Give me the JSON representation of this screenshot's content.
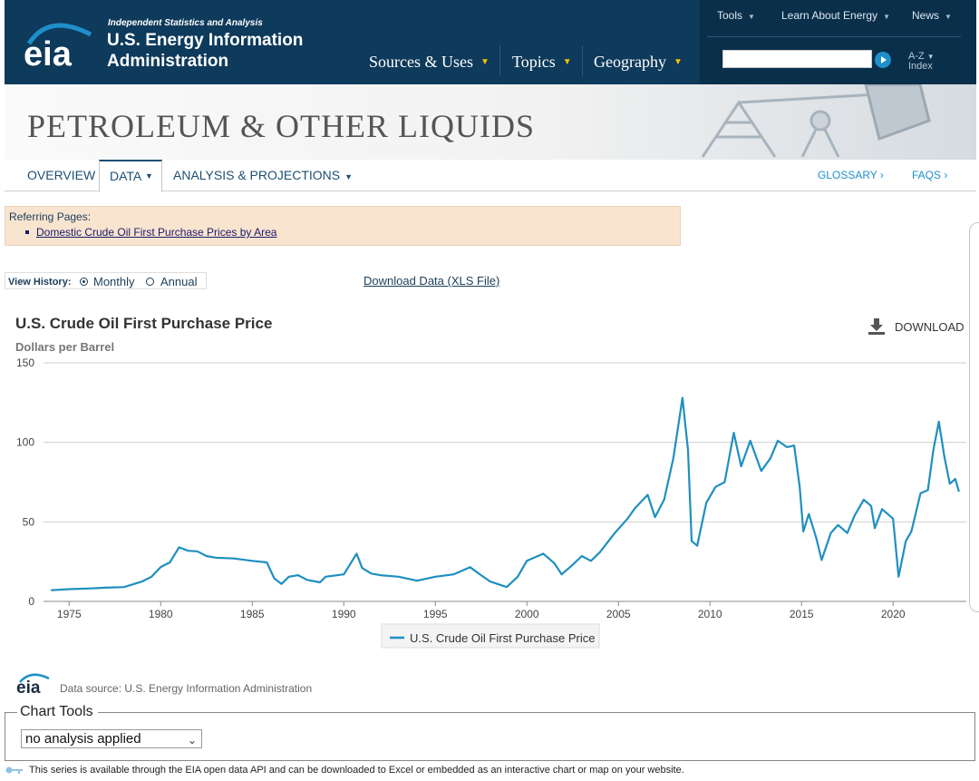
{
  "header": {
    "tagline": "Independent Statistics and Analysis",
    "name_line1": "U.S. Energy Information",
    "name_line2": "Administration",
    "logo_text": "eia",
    "main_nav": [
      "Sources & Uses",
      "Topics",
      "Geography"
    ],
    "utility_nav": [
      "Tools",
      "Learn About Energy",
      "News"
    ],
    "search": {
      "value": "",
      "placeholder": ""
    },
    "az_index": {
      "line1": "A-Z",
      "line2": "Index"
    },
    "colors": {
      "bar": "#0e3a5b",
      "accent": "#f2c200",
      "search_button": "#1e8fc9"
    }
  },
  "banner": {
    "title": "PETROLEUM & OTHER LIQUIDS"
  },
  "subnav": {
    "items": [
      "OVERVIEW",
      "DATA",
      "ANALYSIS & PROJECTIONS"
    ],
    "active": "DATA",
    "right_items": [
      "GLOSSARY ›",
      "FAQS ›"
    ]
  },
  "referring": {
    "heading": "Referring Pages:",
    "links": [
      "Domestic Crude Oil First Purchase Prices by Area"
    ]
  },
  "view_history": {
    "label": "View History:",
    "options": [
      "Monthly",
      "Annual"
    ],
    "selected": "Monthly"
  },
  "download_data_link": "Download Data (XLS File)",
  "chart_header": {
    "title": "U.S. Crude Oil First Purchase Price",
    "units": "Dollars per Barrel",
    "download_label": "DOWNLOAD",
    "download_icon": "download-icon"
  },
  "chart_data": {
    "type": "line",
    "title": "U.S. Crude Oil First Purchase Price",
    "ylabel": "Dollars per Barrel",
    "xlabel": "",
    "ylim": [
      0,
      150
    ],
    "xlim": [
      1974.0,
      2023.6
    ],
    "yticks": [
      0,
      50,
      100,
      150
    ],
    "xticks": [
      1975,
      1980,
      1985,
      1990,
      1995,
      2000,
      2005,
      2010,
      2015,
      2020
    ],
    "grid": true,
    "legend_position": "bottom-center",
    "series": [
      {
        "name": "U.S. Crude Oil First Purchase Price",
        "color": "#1f8fc0",
        "points": [
          [
            1974.0,
            7.0
          ],
          [
            1975.0,
            7.7
          ],
          [
            1976.0,
            8.1
          ],
          [
            1977.0,
            8.6
          ],
          [
            1978.0,
            9.0
          ],
          [
            1979.0,
            12.6
          ],
          [
            1979.5,
            15.5
          ],
          [
            1980.0,
            21.6
          ],
          [
            1980.5,
            24.5
          ],
          [
            1981.0,
            34.0
          ],
          [
            1981.5,
            31.8
          ],
          [
            1982.0,
            31.5
          ],
          [
            1982.5,
            28.5
          ],
          [
            1983.0,
            27.5
          ],
          [
            1984.0,
            27.0
          ],
          [
            1985.0,
            25.5
          ],
          [
            1985.8,
            24.5
          ],
          [
            1986.2,
            14.5
          ],
          [
            1986.6,
            11.0
          ],
          [
            1987.0,
            15.5
          ],
          [
            1987.5,
            16.5
          ],
          [
            1988.0,
            13.5
          ],
          [
            1988.7,
            12.0
          ],
          [
            1989.0,
            15.5
          ],
          [
            1990.0,
            17.0
          ],
          [
            1990.7,
            30.0
          ],
          [
            1991.0,
            21.0
          ],
          [
            1991.5,
            17.5
          ],
          [
            1992.0,
            16.5
          ],
          [
            1993.0,
            15.5
          ],
          [
            1994.0,
            13.0
          ],
          [
            1995.0,
            15.5
          ],
          [
            1996.0,
            17.0
          ],
          [
            1996.9,
            21.5
          ],
          [
            1997.5,
            16.5
          ],
          [
            1998.0,
            12.5
          ],
          [
            1998.9,
            9.0
          ],
          [
            1999.5,
            15.5
          ],
          [
            2000.0,
            25.5
          ],
          [
            2000.9,
            30.0
          ],
          [
            2001.5,
            24.0
          ],
          [
            2001.9,
            17.0
          ],
          [
            2002.5,
            23.0
          ],
          [
            2003.0,
            28.5
          ],
          [
            2003.5,
            25.5
          ],
          [
            2004.0,
            31.0
          ],
          [
            2004.8,
            43.0
          ],
          [
            2005.5,
            52.0
          ],
          [
            2005.9,
            58.5
          ],
          [
            2006.6,
            67.0
          ],
          [
            2007.0,
            53.0
          ],
          [
            2007.5,
            64.0
          ],
          [
            2008.0,
            90.0
          ],
          [
            2008.5,
            128.0
          ],
          [
            2008.8,
            95.0
          ],
          [
            2009.0,
            38.0
          ],
          [
            2009.3,
            35.0
          ],
          [
            2009.8,
            62.0
          ],
          [
            2010.3,
            72.0
          ],
          [
            2010.8,
            75.0
          ],
          [
            2011.3,
            106.0
          ],
          [
            2011.7,
            85.0
          ],
          [
            2012.2,
            101.0
          ],
          [
            2012.8,
            82.0
          ],
          [
            2013.3,
            90.0
          ],
          [
            2013.7,
            101.0
          ],
          [
            2014.2,
            97.0
          ],
          [
            2014.6,
            98.0
          ],
          [
            2014.9,
            72.0
          ],
          [
            2015.1,
            44.0
          ],
          [
            2015.4,
            55.0
          ],
          [
            2015.8,
            40.0
          ],
          [
            2016.1,
            26.0
          ],
          [
            2016.6,
            43.0
          ],
          [
            2017.0,
            48.0
          ],
          [
            2017.5,
            43.0
          ],
          [
            2017.9,
            54.0
          ],
          [
            2018.4,
            64.0
          ],
          [
            2018.8,
            60.0
          ],
          [
            2019.0,
            46.0
          ],
          [
            2019.4,
            58.0
          ],
          [
            2019.8,
            54.0
          ],
          [
            2020.0,
            52.0
          ],
          [
            2020.3,
            15.5
          ],
          [
            2020.7,
            38.0
          ],
          [
            2021.0,
            44.0
          ],
          [
            2021.5,
            68.0
          ],
          [
            2021.9,
            70.0
          ],
          [
            2022.2,
            95.0
          ],
          [
            2022.5,
            113.0
          ],
          [
            2022.8,
            91.0
          ],
          [
            2023.1,
            74.0
          ],
          [
            2023.4,
            77.0
          ],
          [
            2023.6,
            69.0
          ]
        ]
      }
    ]
  },
  "legend": {
    "label": "U.S. Crude Oil First Purchase Price"
  },
  "source": {
    "logo_text": "eia",
    "text": "Data source: U.S. Energy Information Administration"
  },
  "chart_tools": {
    "legend": "Chart Tools",
    "select_value": "no analysis applied"
  },
  "footer": {
    "text": "This series is available through the EIA open data API and can be downloaded to Excel or embedded as an interactive chart or map on your website.",
    "icon": "key-icon"
  }
}
